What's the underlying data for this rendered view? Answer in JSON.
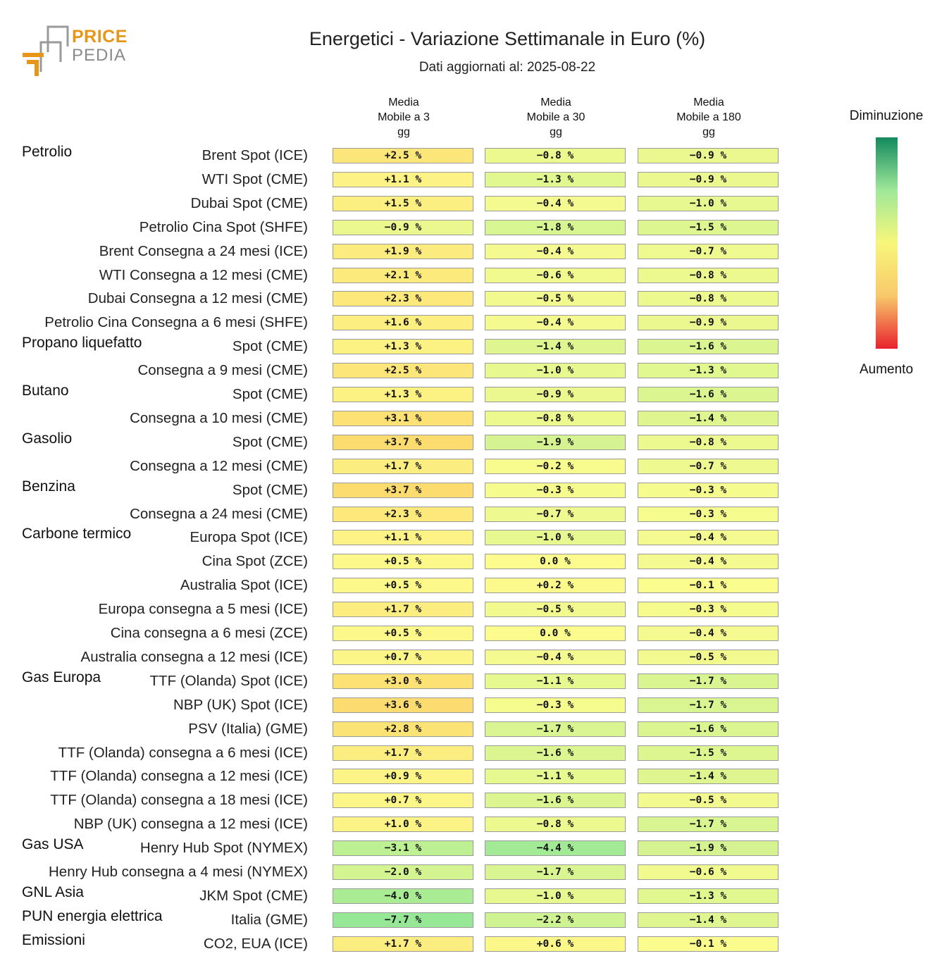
{
  "header": {
    "logo_line1": "PRICE",
    "logo_line2": "PEDIA",
    "title": "Energetici - Variazione Settimanale in Euro (%)",
    "subtitle": "Dati aggiornati al: 2025-08-22"
  },
  "legend": {
    "top_label": "Diminuzione",
    "bottom_label": "Aumento",
    "colors": [
      "#138a5e",
      "#9fe89a",
      "#f7f77a",
      "#f8c86a",
      "#e8222e"
    ]
  },
  "chart_data": {
    "type": "table",
    "title": "Energetici - Variazione Settimanale in Euro (%)",
    "columns": [
      "Media\nMobile a 3\ngg",
      "Media\nMobile a 30\ngg",
      "Media\nMobile a 180\ngg"
    ],
    "groups": [
      {
        "name": "Petrolio",
        "rows": [
          {
            "label": "Brent Spot (ICE)",
            "values": [
              2.5,
              -0.8,
              -0.9
            ]
          },
          {
            "label": "WTI Spot (CME)",
            "values": [
              1.1,
              -1.3,
              -0.9
            ]
          },
          {
            "label": "Dubai Spot (CME)",
            "values": [
              1.5,
              -0.4,
              -1.0
            ]
          },
          {
            "label": "Petrolio Cina Spot (SHFE)",
            "values": [
              -0.9,
              -1.8,
              -1.5
            ]
          },
          {
            "label": "Brent Consegna a 24 mesi (ICE)",
            "values": [
              1.9,
              -0.4,
              -0.7
            ]
          },
          {
            "label": "WTI Consegna a 12 mesi (CME)",
            "values": [
              2.1,
              -0.6,
              -0.8
            ]
          },
          {
            "label": "Dubai Consegna a 12 mesi (CME)",
            "values": [
              2.3,
              -0.5,
              -0.8
            ]
          },
          {
            "label": "Petrolio Cina Consegna a 6 mesi (SHFE)",
            "values": [
              1.6,
              -0.4,
              -0.9
            ]
          }
        ]
      },
      {
        "name": "Propano liquefatto",
        "rows": [
          {
            "label": "Spot (CME)",
            "values": [
              1.3,
              -1.4,
              -1.6
            ]
          },
          {
            "label": "Consegna a 9 mesi (CME)",
            "values": [
              2.5,
              -1.0,
              -1.3
            ]
          }
        ]
      },
      {
        "name": "Butano",
        "rows": [
          {
            "label": "Spot (CME)",
            "values": [
              1.3,
              -0.9,
              -1.6
            ]
          },
          {
            "label": "Consegna a 10 mesi (CME)",
            "values": [
              3.1,
              -0.8,
              -1.4
            ]
          }
        ]
      },
      {
        "name": "Gasolio",
        "rows": [
          {
            "label": "Spot (CME)",
            "values": [
              3.7,
              -1.9,
              -0.8
            ]
          },
          {
            "label": "Consegna a 12 mesi (CME)",
            "values": [
              1.7,
              -0.2,
              -0.7
            ]
          }
        ]
      },
      {
        "name": "Benzina",
        "rows": [
          {
            "label": "Spot (CME)",
            "values": [
              3.7,
              -0.3,
              -0.3
            ]
          },
          {
            "label": "Consegna a 24 mesi (CME)",
            "values": [
              2.3,
              -0.7,
              -0.3
            ]
          }
        ]
      },
      {
        "name": "Carbone termico",
        "rows": [
          {
            "label": "Europa Spot (ICE)",
            "values": [
              1.1,
              -1.0,
              -0.4
            ]
          },
          {
            "label": "Cina Spot (ZCE)",
            "values": [
              0.5,
              0.0,
              -0.4
            ]
          },
          {
            "label": "Australia Spot (ICE)",
            "values": [
              0.5,
              0.2,
              -0.1
            ]
          },
          {
            "label": "Europa consegna a 5 mesi (ICE)",
            "values": [
              1.7,
              -0.5,
              -0.3
            ]
          },
          {
            "label": "Cina consegna a 6 mesi (ZCE)",
            "values": [
              0.5,
              0.0,
              -0.4
            ]
          },
          {
            "label": "Australia consegna a 12 mesi (ICE)",
            "values": [
              0.7,
              -0.4,
              -0.5
            ]
          }
        ]
      },
      {
        "name": "Gas Europa",
        "rows": [
          {
            "label": "TTF (Olanda) Spot (ICE)",
            "values": [
              3.0,
              -1.1,
              -1.7
            ]
          },
          {
            "label": "NBP (UK) Spot (ICE)",
            "values": [
              3.6,
              -0.3,
              -1.7
            ]
          },
          {
            "label": "PSV (Italia) (GME)",
            "values": [
              2.8,
              -1.7,
              -1.6
            ]
          },
          {
            "label": "TTF (Olanda) consegna a 6 mesi (ICE)",
            "values": [
              1.7,
              -1.6,
              -1.5
            ]
          },
          {
            "label": "TTF (Olanda) consegna a 12 mesi (ICE)",
            "values": [
              0.9,
              -1.1,
              -1.4
            ]
          },
          {
            "label": "TTF (Olanda) consegna a 18 mesi (ICE)",
            "values": [
              0.7,
              -1.6,
              -0.5
            ]
          },
          {
            "label": "NBP (UK) consegna a 12 mesi (ICE)",
            "values": [
              1.0,
              -0.8,
              -1.7
            ]
          }
        ]
      },
      {
        "name": "Gas USA",
        "rows": [
          {
            "label": "Henry Hub Spot (NYMEX)",
            "values": [
              -3.1,
              -4.4,
              -1.9
            ]
          },
          {
            "label": "Henry Hub consegna a 4 mesi (NYMEX)",
            "values": [
              -2.0,
              -1.7,
              -0.6
            ]
          }
        ]
      },
      {
        "name": "GNL Asia",
        "rows": [
          {
            "label": "JKM Spot (CME)",
            "values": [
              -4.0,
              -1.0,
              -1.3
            ]
          }
        ]
      },
      {
        "name": "PUN energia elettrica",
        "rows": [
          {
            "label": "Italia (GME)",
            "values": [
              -7.7,
              -2.2,
              -1.4
            ]
          }
        ]
      },
      {
        "name": "Emissioni",
        "rows": [
          {
            "label": "CO2, EUA (ICE)",
            "values": [
              1.7,
              0.6,
              -0.1
            ]
          }
        ]
      }
    ]
  }
}
